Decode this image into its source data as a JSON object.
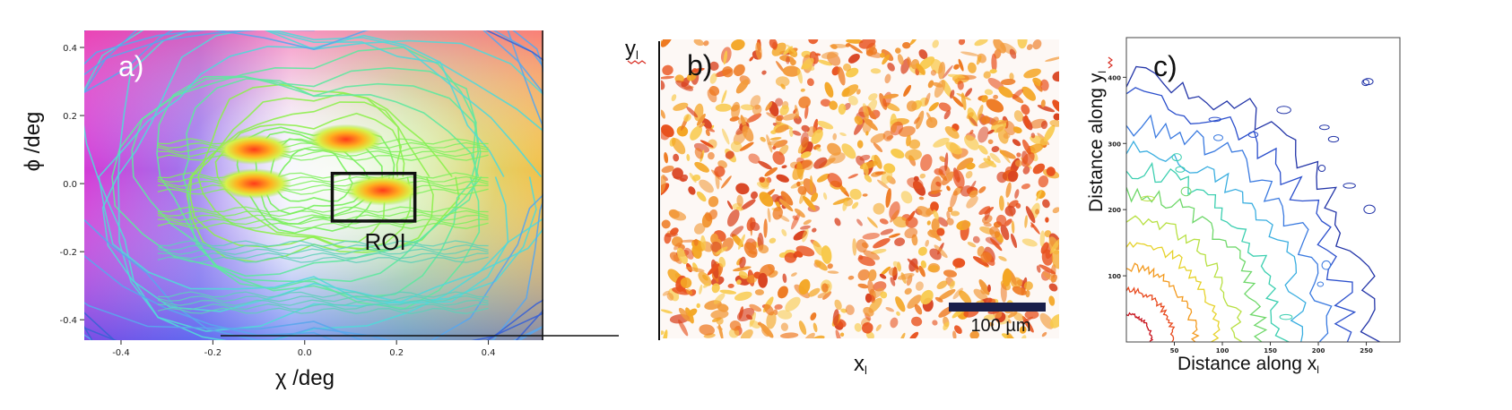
{
  "chart_data": [
    {
      "type": "heatmap",
      "panel_label": "a)",
      "xlabel": "χ /deg",
      "ylabel": "ϕ /deg",
      "xlim": [
        -0.48,
        0.52
      ],
      "ylim": [
        -0.46,
        0.45
      ],
      "xticks": [
        "-0.4",
        "-0.2",
        "0.0",
        "0.2",
        "0.4"
      ],
      "yticks": [
        "-0.4",
        "-0.2",
        "0.0",
        "0.2",
        "0.4"
      ],
      "xtick_values": [
        -0.4,
        -0.2,
        0.0,
        0.2,
        0.4
      ],
      "ytick_values": [
        -0.4,
        -0.2,
        0.0,
        0.2,
        0.4
      ],
      "peaks": [
        {
          "x": -0.11,
          "y": 0.1
        },
        {
          "x": -0.11,
          "y": 0.0
        },
        {
          "x": 0.09,
          "y": 0.13
        },
        {
          "x": 0.17,
          "y": -0.02
        }
      ],
      "roi": {
        "label": "ROI",
        "x0": 0.06,
        "x1": 0.24,
        "y0": -0.11,
        "y1": 0.03
      },
      "grid": false
    },
    {
      "type": "heatmap",
      "panel_label": "b)",
      "xlabel": "x",
      "xlabel_sub": "l",
      "ylabel": "y",
      "ylabel_sub": "l",
      "scalebar": "100 µm",
      "colormap": "white-yellow-orange-red",
      "grid": false
    },
    {
      "type": "heatmap",
      "panel_label": "c)",
      "xlabel": "Distance along x",
      "xlabel_sub": "l",
      "ylabel": "Distance along y",
      "ylabel_sub": "l",
      "xlim": [
        0,
        285
      ],
      "ylim": [
        0,
        460
      ],
      "xticks": [
        "50",
        "100",
        "150",
        "200",
        "250"
      ],
      "yticks": [
        "100",
        "200",
        "300",
        "400"
      ],
      "xtick_values": [
        50,
        100,
        150,
        200,
        250
      ],
      "ytick_values": [
        100,
        200,
        300,
        400
      ],
      "colormap": "jet",
      "grid": false
    }
  ],
  "colors": {
    "roi_box": "#111111",
    "scalebar": "#1a1f4a",
    "panel_a_label": "#ffffff",
    "panel_b_label": "#111111",
    "panel_c_label": "#111111"
  }
}
